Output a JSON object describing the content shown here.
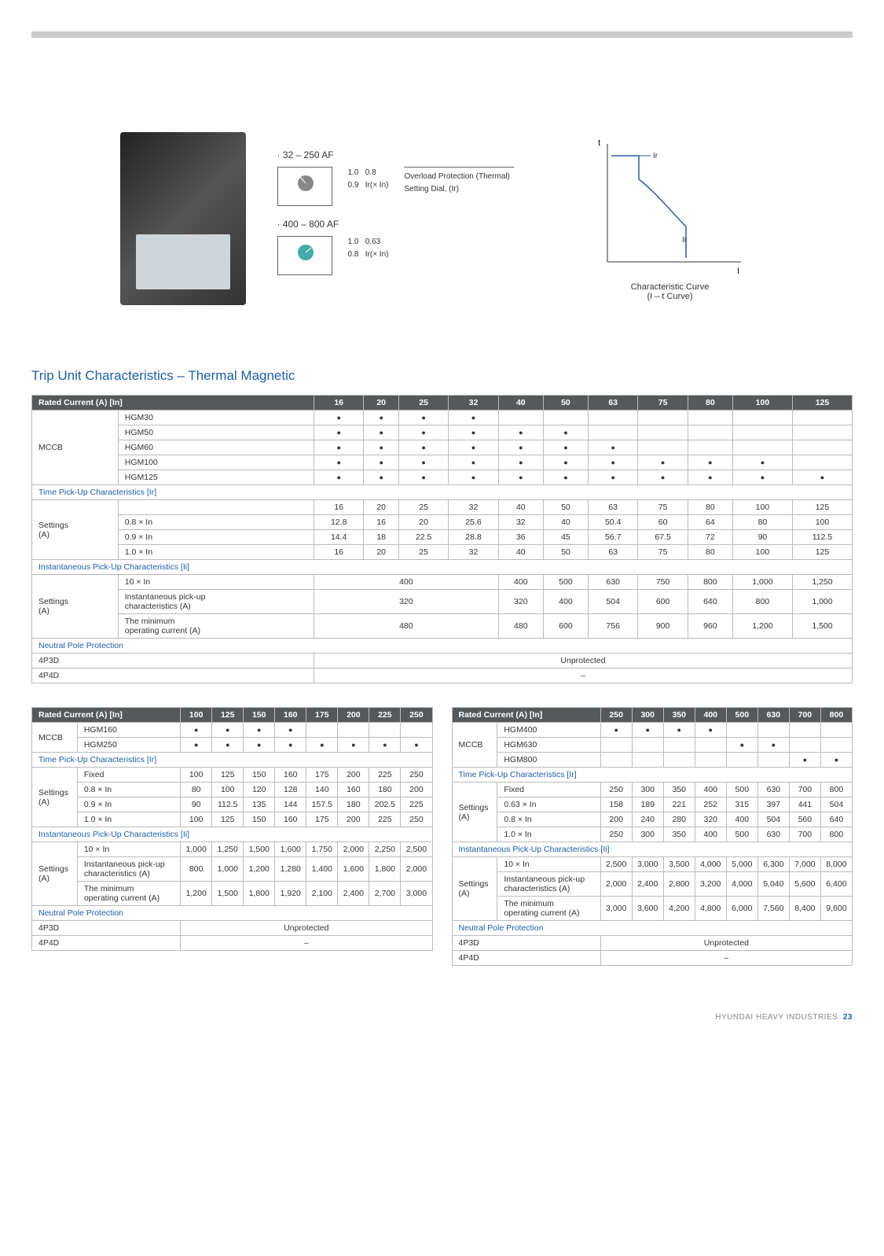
{
  "figure": {
    "range1_heading": "· 32 – 250 AF",
    "range2_heading": "· 400 – 800 AF",
    "dial1_labels": [
      "1.0",
      "0.9",
      "0.8",
      "Ir(× In)"
    ],
    "dial2_labels": [
      "1.0",
      "0.8",
      "0.63",
      "Ir(× In)"
    ],
    "note1": "Overload Protection (Thermal)",
    "note2": "Setting Dial, (Ir)",
    "curve_caption": "Characteristic Curve\n(I – t Curve)",
    "curve_axis_t": "t",
    "curve_axis_I": "I",
    "curve_Ir": "Ir",
    "curve_Ii": "Ii"
  },
  "section_title": "Trip Unit Characteristics – Thermal Magnetic",
  "table1": {
    "header_label": "Rated Current (A) [In]",
    "cols": [
      "16",
      "20",
      "25",
      "32",
      "40",
      "50",
      "63",
      "75",
      "80",
      "100",
      "125"
    ],
    "mccb_label": "MCCB",
    "mccb_rows": [
      {
        "name": "HGM30",
        "dots": [
          1,
          1,
          1,
          1,
          0,
          0,
          0,
          0,
          0,
          0,
          0
        ]
      },
      {
        "name": "HGM50",
        "dots": [
          1,
          1,
          1,
          1,
          1,
          1,
          0,
          0,
          0,
          0,
          0
        ]
      },
      {
        "name": "HGM60",
        "dots": [
          1,
          1,
          1,
          1,
          1,
          1,
          1,
          0,
          0,
          0,
          0
        ]
      },
      {
        "name": "HGM100",
        "dots": [
          1,
          1,
          1,
          1,
          1,
          1,
          1,
          1,
          1,
          1,
          0
        ]
      },
      {
        "name": "HGM125",
        "dots": [
          1,
          1,
          1,
          1,
          1,
          1,
          1,
          1,
          1,
          1,
          1
        ]
      }
    ],
    "time_header": "Time Pick-Up Characteristics [Ir]",
    "settings_label": "Settings\n(A)",
    "time_rows": [
      {
        "name": "",
        "v": [
          "16",
          "20",
          "25",
          "32",
          "40",
          "50",
          "63",
          "75",
          "80",
          "100",
          "125"
        ]
      },
      {
        "name": "0.8 × In",
        "v": [
          "12.8",
          "16",
          "20",
          "25.6",
          "32",
          "40",
          "50.4",
          "60",
          "64",
          "80",
          "100"
        ]
      },
      {
        "name": "0.9 × In",
        "v": [
          "14.4",
          "18",
          "22.5",
          "28.8",
          "36",
          "45",
          "56.7",
          "67.5",
          "72",
          "90",
          "112.5"
        ]
      },
      {
        "name": "1.0 × In",
        "v": [
          "16",
          "20",
          "25",
          "32",
          "40",
          "50",
          "63",
          "75",
          "80",
          "100",
          "125"
        ]
      }
    ],
    "inst_header": "Instantaneous Pick-Up Characteristics [Ii]",
    "inst_rows": [
      {
        "name": "10 × In",
        "span4": "400",
        "rest": [
          "400",
          "500",
          "630",
          "750",
          "800",
          "1,000",
          "1,250"
        ]
      },
      {
        "name": "Instantaneous pick-up\ncharacteristics (A)",
        "span4": "320",
        "rest": [
          "320",
          "400",
          "504",
          "600",
          "640",
          "800",
          "1,000"
        ]
      },
      {
        "name": "The minimum\noperating current (A)",
        "span4": "480",
        "rest": [
          "480",
          "600",
          "756",
          "900",
          "960",
          "1,200",
          "1,500"
        ]
      }
    ],
    "npp_header": "Neutral Pole Protection",
    "npp_rows": [
      {
        "name": "4P3D",
        "val": "Unprotected"
      },
      {
        "name": "4P4D",
        "val": "–"
      }
    ]
  },
  "table2": {
    "header_label": "Rated Current (A) [In]",
    "cols": [
      "100",
      "125",
      "150",
      "160",
      "175",
      "200",
      "225",
      "250"
    ],
    "mccb_label": "MCCB",
    "mccb_rows": [
      {
        "name": "HGM160",
        "dots": [
          1,
          1,
          1,
          1,
          0,
          0,
          0,
          0
        ]
      },
      {
        "name": "HGM250",
        "dots": [
          1,
          1,
          1,
          1,
          1,
          1,
          1,
          1
        ]
      }
    ],
    "time_header": "Time Pick-Up Characteristics [Ir]",
    "settings_label": "Settings\n(A)",
    "time_rows": [
      {
        "name": "Fixed",
        "v": [
          "100",
          "125",
          "150",
          "160",
          "175",
          "200",
          "225",
          "250"
        ]
      },
      {
        "name": "0.8 × In",
        "v": [
          "80",
          "100",
          "120",
          "128",
          "140",
          "160",
          "180",
          "200"
        ]
      },
      {
        "name": "0.9 × In",
        "v": [
          "90",
          "112.5",
          "135",
          "144",
          "157.5",
          "180",
          "202.5",
          "225"
        ]
      },
      {
        "name": "1.0 × In",
        "v": [
          "100",
          "125",
          "150",
          "160",
          "175",
          "200",
          "225",
          "250"
        ]
      }
    ],
    "inst_header": "Instantaneous Pick-Up Characteristics [Ii]",
    "inst_rows": [
      {
        "name": "10 × In",
        "v": [
          "1,000",
          "1,250",
          "1,500",
          "1,600",
          "1,750",
          "2,000",
          "2,250",
          "2,500"
        ]
      },
      {
        "name": "Instantaneous pick-up\ncharacteristics (A)",
        "v": [
          "800",
          "1,000",
          "1,200",
          "1,280",
          "1,400",
          "1,600",
          "1,800",
          "2,000"
        ]
      },
      {
        "name": "The minimum\noperating current (A)",
        "v": [
          "1,200",
          "1,500",
          "1,800",
          "1,920",
          "2,100",
          "2,400",
          "2,700",
          "3,000"
        ]
      }
    ],
    "npp_header": "Neutral Pole Protection",
    "npp_rows": [
      {
        "name": "4P3D",
        "val": "Unprotected"
      },
      {
        "name": "4P4D",
        "val": "–"
      }
    ]
  },
  "table3": {
    "header_label": "Rated Current (A) [In]",
    "cols": [
      "250",
      "300",
      "350",
      "400",
      "500",
      "630",
      "700",
      "800"
    ],
    "mccb_label": "MCCB",
    "mccb_rows": [
      {
        "name": "HGM400",
        "dots": [
          1,
          1,
          1,
          1,
          0,
          0,
          0,
          0
        ]
      },
      {
        "name": "HGM630",
        "dots": [
          0,
          0,
          0,
          0,
          1,
          1,
          0,
          0
        ]
      },
      {
        "name": "HGM800",
        "dots": [
          0,
          0,
          0,
          0,
          0,
          0,
          1,
          1
        ]
      }
    ],
    "time_header": "Time Pick-Up Characteristics [Ir]",
    "settings_label": "Settings\n(A)",
    "time_rows": [
      {
        "name": "Fixed",
        "v": [
          "250",
          "300",
          "350",
          "400",
          "500",
          "630",
          "700",
          "800"
        ]
      },
      {
        "name": "0.63 × In",
        "v": [
          "158",
          "189",
          "221",
          "252",
          "315",
          "397",
          "441",
          "504"
        ]
      },
      {
        "name": "0.8 × In",
        "v": [
          "200",
          "240",
          "280",
          "320",
          "400",
          "504",
          "560",
          "640"
        ]
      },
      {
        "name": "1.0 × In",
        "v": [
          "250",
          "300",
          "350",
          "400",
          "500",
          "630",
          "700",
          "800"
        ]
      }
    ],
    "inst_header": "Instantaneous Pick-Up Characteristics [Ii]",
    "inst_rows": [
      {
        "name": "10 × In",
        "v": [
          "2,500",
          "3,000",
          "3,500",
          "4,000",
          "5,000",
          "6,300",
          "7,000",
          "8,000"
        ]
      },
      {
        "name": "Instantaneous pick-up\ncharacteristics (A)",
        "v": [
          "2,000",
          "2,400",
          "2,800",
          "3,200",
          "4,000",
          "5,040",
          "5,600",
          "6,400"
        ]
      },
      {
        "name": "The minimum\noperating current (A)",
        "v": [
          "3,000",
          "3,600",
          "4,200",
          "4,800",
          "6,000",
          "7,560",
          "8,400",
          "9,600"
        ]
      }
    ],
    "npp_header": "Neutral Pole Protection",
    "npp_rows": [
      {
        "name": "4P3D",
        "val": "Unprotected"
      },
      {
        "name": "4P4D",
        "val": "–"
      }
    ]
  },
  "footer": {
    "brand": "HYUNDAI HEAVY INDUSTRIES",
    "page": "23"
  }
}
